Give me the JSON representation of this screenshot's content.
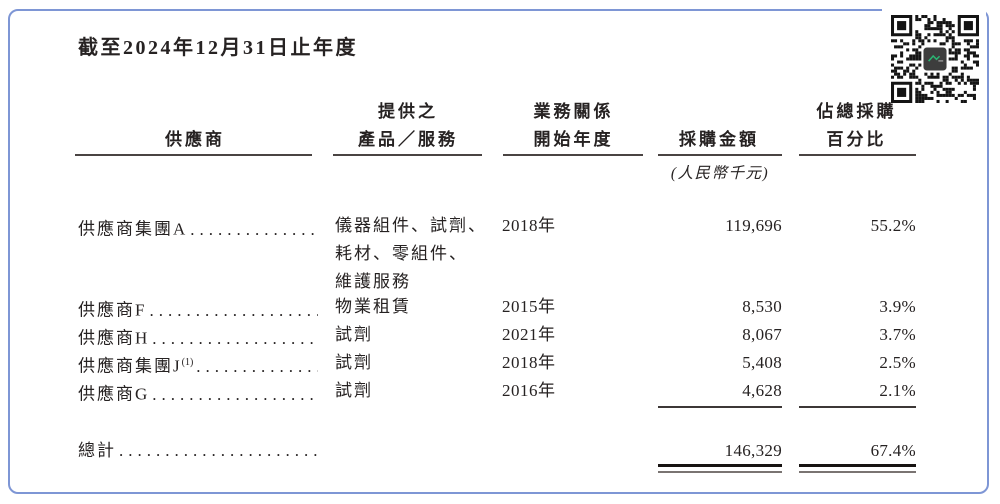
{
  "page": {
    "title": "截至2024年12月31日止年度",
    "border_color": "#7E96D5",
    "text_color": "#262222",
    "icons": {
      "qr": "qr-code"
    }
  },
  "table": {
    "header": {
      "col1": "供應商",
      "col2_line1": "提供之",
      "col2_line2": "產品／服務",
      "col3_line1": "業務關係",
      "col3_line2": "開始年度",
      "col4": "採購金額",
      "col5_line1": "佔總採購",
      "col5_line2": "百分比"
    },
    "unit_note": "(人民幣千元)",
    "leader_dots": ".............................................",
    "rows": [
      {
        "supplier": "供應商集團A",
        "services": [
          "儀器組件、試劑、",
          "耗材、零組件、",
          "維護服務"
        ],
        "start_year": "2018年",
        "amount": "119,696",
        "pct": "55.2%"
      },
      {
        "supplier": "供應商F",
        "services": [
          "物業租賃"
        ],
        "start_year": "2015年",
        "amount": "8,530",
        "pct": "3.9%"
      },
      {
        "supplier": "供應商H",
        "services": [
          "試劑"
        ],
        "start_year": "2021年",
        "amount": "8,067",
        "pct": "3.7%"
      },
      {
        "supplier": "供應商集團J",
        "supplier_sup": "(1)",
        "services": [
          "試劑"
        ],
        "start_year": "2018年",
        "amount": "5,408",
        "pct": "2.5%"
      },
      {
        "supplier": "供應商G",
        "services": [
          "試劑"
        ],
        "start_year": "2016年",
        "amount": "4,628",
        "pct": "2.1%"
      }
    ],
    "total": {
      "label": "總計",
      "amount": "146,329",
      "pct": "67.4%"
    }
  }
}
